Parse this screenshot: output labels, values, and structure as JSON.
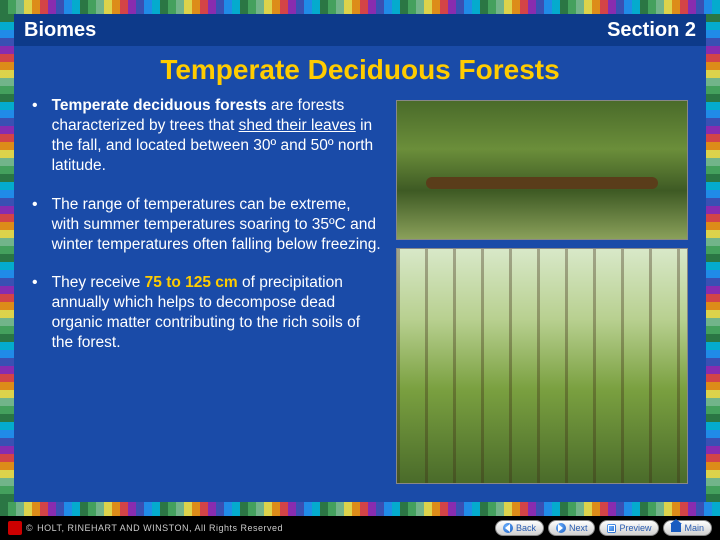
{
  "header": {
    "left": "Biomes",
    "right": "Section 2"
  },
  "title": "Temperate Deciduous Forests",
  "bullets": [
    {
      "parts": [
        {
          "t": "Temperate deciduous forests",
          "bold": true
        },
        {
          "t": " are forests characterized by trees that "
        },
        {
          "t": "shed their leaves",
          "underline": true
        },
        {
          "t": " in the fall, and located between 30º and 50º north latitude."
        }
      ]
    },
    {
      "parts": [
        {
          "t": "The range of temperatures can be extreme, with summer temperatures soaring to 35ºC and winter temperatures often falling below freezing."
        }
      ]
    },
    {
      "parts": [
        {
          "t": "They receive "
        },
        {
          "t": "75 to 125 cm",
          "yellow": true
        },
        {
          "t": " of precipitation annually which helps to decompose dead organic matter contributing to the rich soils of the forest."
        }
      ]
    }
  ],
  "images": [
    {
      "name": "forest-floor-photo",
      "alt": "Temperate forest with fallen log and green understory"
    },
    {
      "name": "forest-trees-photo",
      "alt": "Tall deciduous trees with spring foliage"
    }
  ],
  "footer": {
    "copyright": "HOLT, RINEHART AND WINSTON, All Rights Reserved",
    "copy_symbol": "©",
    "nav": [
      {
        "name": "back-button",
        "label": "Back",
        "icon": "tri-l"
      },
      {
        "name": "next-button",
        "label": "Next",
        "icon": "tri-r"
      },
      {
        "name": "preview-button",
        "label": "Preview",
        "icon": "sq"
      },
      {
        "name": "main-button",
        "label": "Main",
        "icon": "house"
      }
    ]
  },
  "colors": {
    "slide_bg": "#1a4ba8",
    "title_color": "#ffcc00",
    "text_color": "#ffffff",
    "footer_bg": "#000000"
  }
}
